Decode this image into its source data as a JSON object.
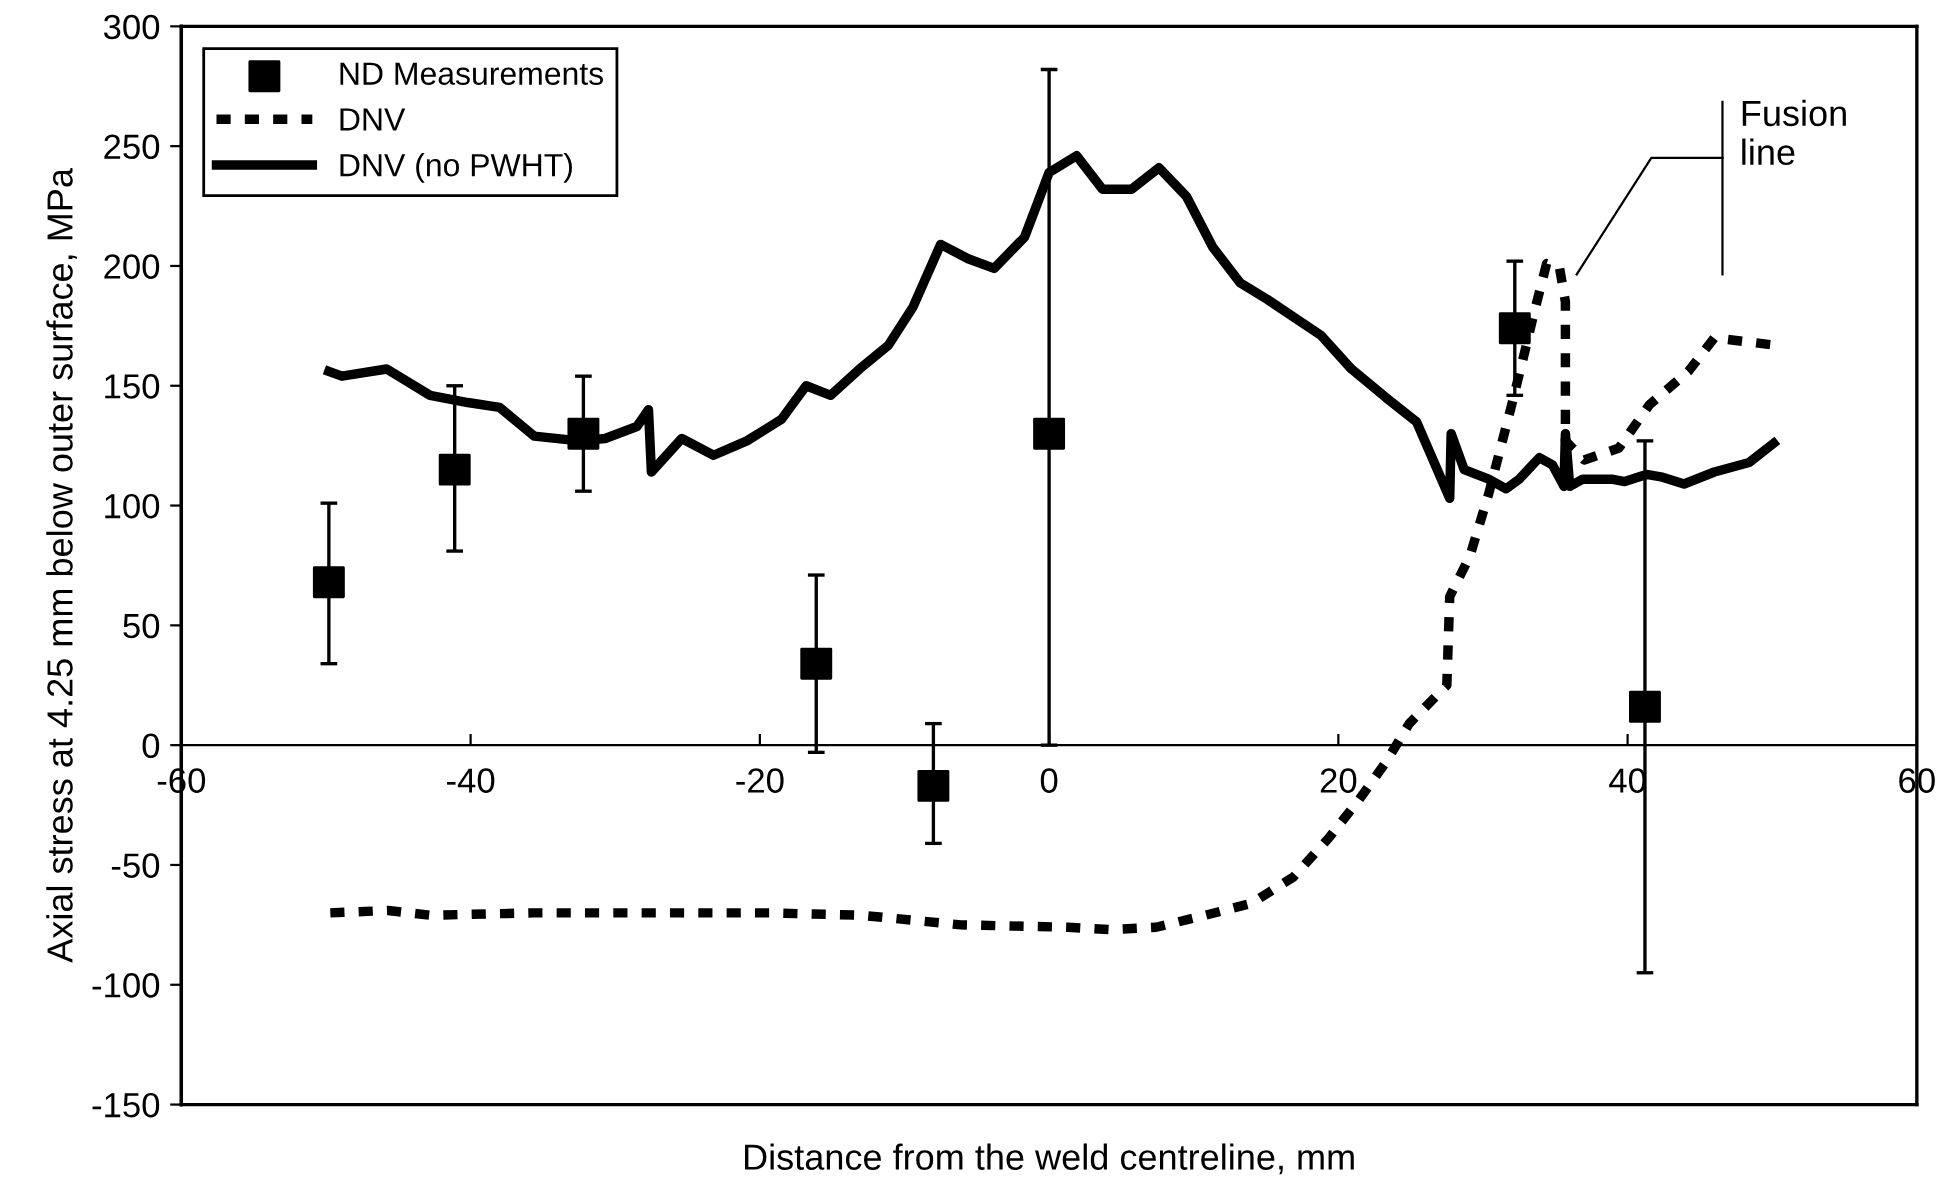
{
  "chart_data": {
    "type": "line",
    "xlabel": "Distance from the weld centreline, mm",
    "ylabel": "Axial stress at 4.25 mm below outer surface, MPa",
    "xlim": [
      -60,
      60
    ],
    "xticks": [
      -60,
      -40,
      -20,
      0,
      20,
      40,
      60
    ],
    "ylim": [
      -150,
      300
    ],
    "yticks": [
      -150,
      -100,
      -50,
      0,
      50,
      100,
      150,
      200,
      250,
      300
    ],
    "grid": false,
    "legend": "top left",
    "annotations": [
      "Fusion\nline"
    ],
    "series": [
      {
        "name": "ND Measurements",
        "type": "scatter",
        "marker": "square",
        "color": "#000000",
        "x": [
          -49.8,
          -41.1,
          -32.2,
          -16.1,
          -8,
          0,
          32.2,
          41.2
        ],
        "values": [
          68,
          115,
          130,
          34,
          -17,
          130,
          174,
          16
        ],
        "errors": [
          [
            34,
            101
          ],
          [
            81,
            150
          ],
          [
            106,
            154
          ],
          [
            -3,
            71
          ],
          [
            -41,
            9
          ],
          [
            0,
            282
          ],
          [
            146,
            202
          ],
          [
            -95,
            127
          ]
        ]
      },
      {
        "name": "DNV",
        "line_style": "dashed",
        "color": "#000000",
        "x": [
          -49.7,
          -45.7,
          -42.8,
          -35.7,
          -26.2,
          -19.3,
          -13,
          -6.1,
          1.3,
          4.2,
          7.4,
          10.8,
          14,
          16.9,
          19.3,
          21.4,
          23.3,
          24.9,
          27.5,
          27.7,
          29.1,
          30.4,
          31.9,
          32.8,
          33.6,
          34.4,
          35.3,
          35.7,
          35.7,
          37,
          39.4,
          41.5,
          44.2,
          46,
          50.1
        ],
        "values": [
          -70,
          -69,
          -71,
          -70,
          -70,
          -70,
          -71,
          -75,
          -76,
          -77,
          -76,
          -71,
          -66,
          -55,
          -39,
          -23,
          -7,
          9,
          25,
          62,
          79,
          105,
          140,
          162,
          182,
          201,
          199,
          185,
          127,
          119,
          124,
          142,
          156,
          170,
          167
        ]
      },
      {
        "name": "DNV (no PWHT)",
        "line_style": "solid",
        "color": "#000000",
        "x": [
          -49.8,
          -48.9,
          -45.8,
          -42.8,
          -40.2,
          -38,
          -35.6,
          -32.5,
          -30.7,
          -28.5,
          -27.7,
          -27.5,
          -25.4,
          -23.2,
          -20.9,
          -18.5,
          -16.8,
          -15.1,
          -13.1,
          -11.1,
          -9.4,
          -7.5,
          -5.6,
          -3.8,
          -1.7,
          0,
          1.9,
          3.7,
          5.7,
          7.6,
          9.5,
          11.3,
          13.2,
          15.1,
          18.8,
          20.9,
          23.3,
          25.4,
          27.7,
          27.8,
          28.7,
          30.4,
          31.6,
          32.5,
          33.9,
          34.8,
          35.6,
          35.7,
          36,
          36.9,
          38.9,
          39.8,
          41.3,
          42.3,
          43.9,
          46,
          48.4,
          50.1
        ],
        "values": [
          156,
          154,
          157,
          146,
          143,
          141,
          129,
          127,
          128,
          133,
          140,
          114,
          128,
          121,
          127,
          136,
          150,
          146,
          157,
          167,
          183,
          209,
          203,
          199,
          212,
          239,
          246,
          232,
          232,
          241,
          229,
          208,
          193,
          186,
          171,
          157,
          145,
          135,
          103,
          130,
          115,
          111,
          107,
          111,
          120,
          117,
          108,
          130,
          108,
          111,
          111,
          110,
          113,
          112,
          109,
          114,
          118,
          126
        ]
      }
    ]
  }
}
